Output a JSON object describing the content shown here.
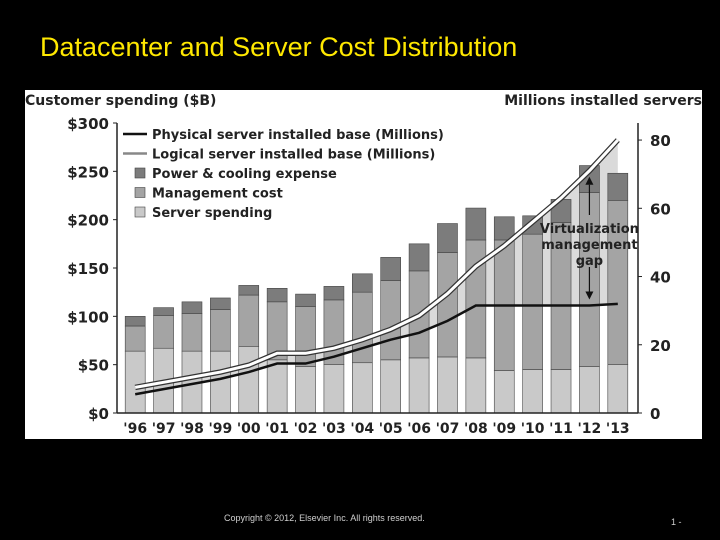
{
  "slide": {
    "title": "Datacenter and Server Cost Distribution",
    "copyright": "Copyright © 2012, Elsevier Inc. All rights reserved.",
    "page_number": "1 -"
  },
  "colors": {
    "slide_bg": "#000000",
    "title": "#FFE800",
    "server_spending": "#c9c9c9",
    "management_cost": "#a4a4a4",
    "power_cooling": "#7c7c7c",
    "gap_fill": "#dadada",
    "physical_line": "#111111",
    "logical_line": "#ffffff"
  },
  "chart_data": {
    "type": "bar",
    "stacked": true,
    "title_left": "Customer spending ($B)",
    "title_right": "Millions installed servers",
    "categories": [
      "'96",
      "'97",
      "'98",
      "'99",
      "'00",
      "'01",
      "'02",
      "'03",
      "'04",
      "'05",
      "'06",
      "'07",
      "'08",
      "'09",
      "'10",
      "'11",
      "'12",
      "'13"
    ],
    "left_axis": {
      "ticks": [
        "$0",
        "$50",
        "$100",
        "$150",
        "$200",
        "$250",
        "$300"
      ],
      "tick_values": [
        0,
        50,
        100,
        150,
        200,
        250,
        300
      ],
      "ylim": [
        0,
        300
      ]
    },
    "right_axis": {
      "ticks": [
        "0",
        "20",
        "40",
        "60",
        "80"
      ],
      "tick_values": [
        0,
        20,
        40,
        60,
        80
      ],
      "ylim": [
        0,
        85
      ]
    },
    "series": [
      {
        "name": "Server spending",
        "values": [
          64,
          67,
          64,
          64,
          69,
          55,
          48,
          50,
          52,
          55,
          57,
          58,
          57,
          44,
          45,
          45,
          48,
          50
        ]
      },
      {
        "name": "Management cost",
        "values": [
          26,
          34,
          39,
          43,
          53,
          60,
          62,
          67,
          73,
          82,
          90,
          108,
          122,
          135,
          140,
          152,
          180,
          170
        ]
      },
      {
        "name": "Power & cooling expense",
        "values": [
          10,
          8,
          12,
          12,
          10,
          14,
          13,
          14,
          19,
          24,
          28,
          30,
          33,
          24,
          19,
          24,
          28,
          28
        ]
      }
    ],
    "lines": [
      {
        "name": "Physical server installed base (Millions)",
        "axis": "right",
        "values": [
          5.5,
          7,
          8.5,
          10,
          12,
          14.5,
          14.5,
          16.5,
          19,
          21.5,
          23.5,
          27,
          31.5,
          31.5,
          31.5,
          31.5,
          31.5,
          32
        ]
      },
      {
        "name": "Logical server installed base (Millions)",
        "axis": "right",
        "values": [
          7.5,
          9,
          10.5,
          12,
          14,
          17.5,
          17.5,
          19,
          21.5,
          24.5,
          28.5,
          35,
          43,
          49,
          56,
          63,
          71,
          80
        ]
      }
    ],
    "legend": {
      "placement": "top-left",
      "items": [
        {
          "label": "Physical server installed base (Millions)",
          "kind": "line",
          "color": "#111111"
        },
        {
          "label": "Logical server installed base (Millions)",
          "kind": "line",
          "color": "#888888"
        },
        {
          "label": "Power & cooling expense",
          "kind": "box",
          "color": "#7c7c7c"
        },
        {
          "label": "Management cost",
          "kind": "box",
          "color": "#a4a4a4"
        },
        {
          "label": "Server spending",
          "kind": "box",
          "color": "#c9c9c9"
        }
      ]
    },
    "annotation": {
      "lines": [
        "Virtualization",
        "management",
        "gap"
      ],
      "category_index": 16
    }
  }
}
